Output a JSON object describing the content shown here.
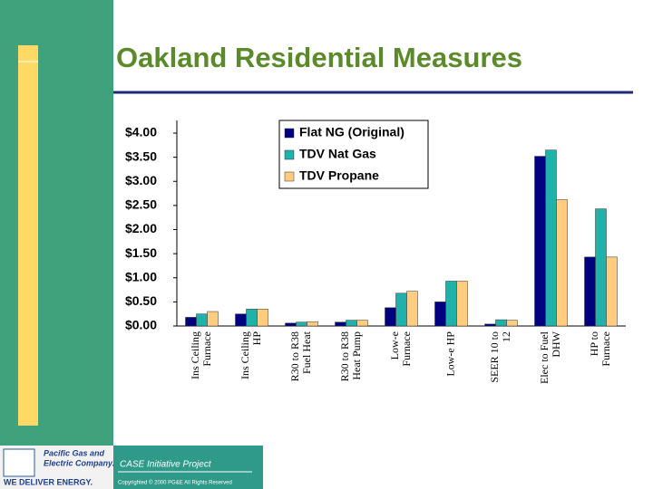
{
  "chart_data": {
    "type": "bar",
    "title": "Oakland Residential Measures",
    "categories": [
      "Ins Ceiling\nFurnace",
      "Ins Ceiling\nHP",
      "R30 to R38\nFuel Heat",
      "R30 to R38\nHeat Pump",
      "Low-e\nFurnace",
      "Low-e HP",
      "SEER 10 to\n12",
      "Elec to Fuel\nDHW",
      "HP to\nFurnace"
    ],
    "series": [
      {
        "name": "Flat NG (Original)",
        "color": "#000080",
        "values": [
          0.18,
          0.25,
          0.06,
          0.08,
          0.38,
          0.5,
          0.04,
          3.52,
          1.43
        ]
      },
      {
        "name": "TDV Nat Gas",
        "color": "#20b2aa",
        "values": [
          0.25,
          0.35,
          0.08,
          0.12,
          0.68,
          0.93,
          0.13,
          3.65,
          2.43
        ]
      },
      {
        "name": "TDV Propane",
        "color": "#ffcc80",
        "values": [
          0.3,
          0.35,
          0.09,
          0.12,
          0.72,
          0.93,
          0.12,
          2.62,
          1.43
        ]
      }
    ],
    "ylim": [
      0,
      4
    ],
    "yticks": [
      {
        "value": 0,
        "label": "$0.00"
      },
      {
        "value": 0.5,
        "label": "$0.50"
      },
      {
        "value": 1,
        "label": "$1.00"
      },
      {
        "value": 1.5,
        "label": "$1.50"
      },
      {
        "value": 2,
        "label": "$2.00"
      },
      {
        "value": 2.5,
        "label": "$2.50"
      },
      {
        "value": 3,
        "label": "$3.00"
      },
      {
        "value": 3.5,
        "label": "$3.50"
      },
      {
        "value": 4,
        "label": "$4.00"
      }
    ],
    "grid": false,
    "legend": "top-right"
  },
  "footer": {
    "company_line1": "Pacific Gas and",
    "company_line2": "Electric Company.",
    "slogan": "WE DELIVER ENERGY.",
    "project": "CASE Initiative Project",
    "copyright": "Copyrighted © 2000 PG&E All Rights Reserved"
  }
}
